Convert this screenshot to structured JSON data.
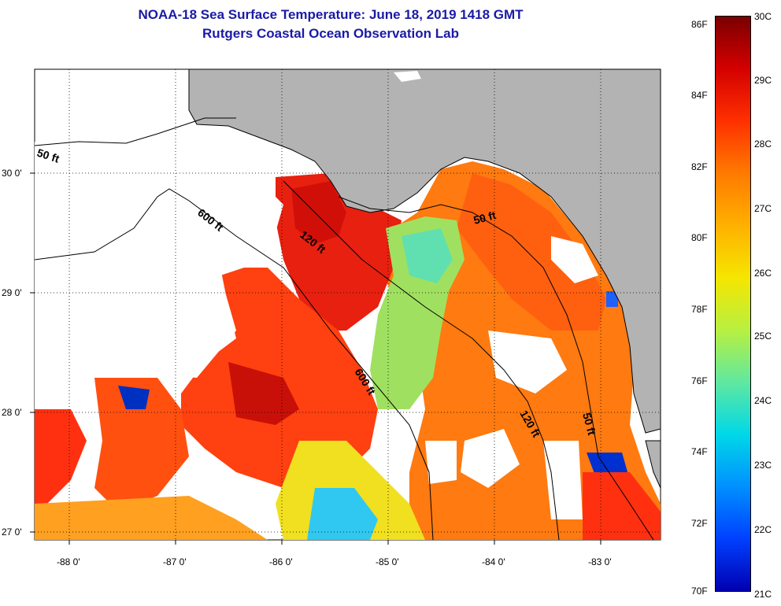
{
  "title": "NOAA-18 Sea Surface Temperature:  June 18, 2019 1418 GMT",
  "subtitle": "Rutgers Coastal Ocean Observation Lab",
  "map": {
    "lon_range": [
      -88.32,
      -82.47
    ],
    "lat_range": [
      26.97,
      30.88
    ],
    "lon_ticks": [
      "-88 0'",
      "-87 0'",
      "-86 0'",
      "-85 0'",
      "-84 0'",
      "-83 0'"
    ],
    "lat_ticks": [
      "30 0'",
      "29 0'",
      "28 0'",
      "27 0'"
    ],
    "contours": [
      "50 ft",
      "600 ft",
      "120 ft",
      "600 ft",
      "120 ft",
      "50 ft",
      "50 ft"
    ],
    "land_color": "#b3b3b3",
    "cloud_color": "#ffffff"
  },
  "colorbar": {
    "fahrenheit": [
      "86F",
      "84F",
      "82F",
      "80F",
      "78F",
      "76F",
      "74F",
      "72F",
      "70F"
    ],
    "celsius": [
      "30C",
      "29C",
      "28C",
      "27C",
      "26C",
      "25C",
      "24C",
      "23C",
      "22C",
      "21C"
    ],
    "gradient": [
      "#7a0000",
      "#d40000",
      "#ff3000",
      "#ff7a00",
      "#ffb000",
      "#f5e600",
      "#b8f040",
      "#60e8a0",
      "#00d8e8",
      "#0090ff",
      "#0040ff",
      "#0000b0"
    ]
  }
}
